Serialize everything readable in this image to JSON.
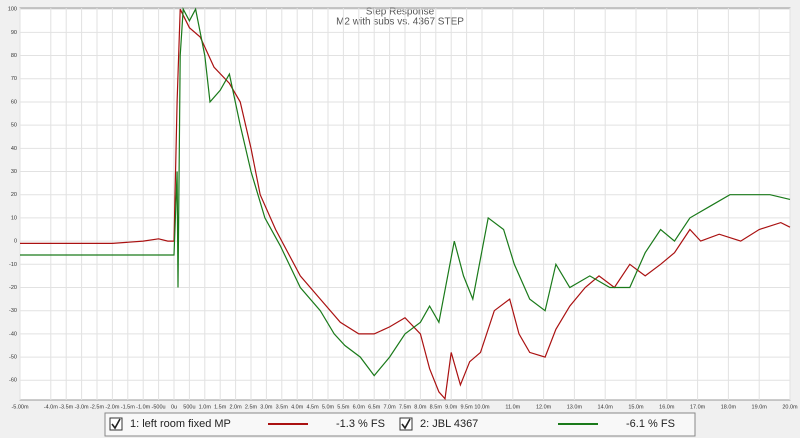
{
  "chart_data": {
    "type": "line",
    "title": "Step Response",
    "subtitle": "M2 with subs vs. 4367 STEP",
    "xlim": [
      -5,
      20
    ],
    "ylim": [
      -68.5,
      100.5
    ],
    "yticks": [
      100,
      90,
      80,
      70,
      60,
      50,
      40,
      30,
      20,
      10,
      0,
      -10,
      -20,
      -30,
      -40,
      -50,
      -60
    ],
    "xticks": [
      {
        "value": -5,
        "label": "-5.00m"
      },
      {
        "value": -4,
        "label": "-4.0m"
      },
      {
        "value": -3.5,
        "label": "-3.5m"
      },
      {
        "value": -3,
        "label": "-3.0m"
      },
      {
        "value": -2.5,
        "label": "-2.5m"
      },
      {
        "value": -2,
        "label": "-2.0m"
      },
      {
        "value": -1.5,
        "label": "-1.5m"
      },
      {
        "value": -1,
        "label": "-1.0m"
      },
      {
        "value": -0.5,
        "label": "-500u"
      },
      {
        "value": 0,
        "label": "0u"
      },
      {
        "value": 0.5,
        "label": "500u"
      },
      {
        "value": 1,
        "label": "1.0m"
      },
      {
        "value": 1.5,
        "label": "1.5m"
      },
      {
        "value": 2,
        "label": "2.0m"
      },
      {
        "value": 2.5,
        "label": "2.5m"
      },
      {
        "value": 3,
        "label": "3.0m"
      },
      {
        "value": 3.5,
        "label": "3.5m"
      },
      {
        "value": 4,
        "label": "4.0m"
      },
      {
        "value": 4.5,
        "label": "4.5m"
      },
      {
        "value": 5,
        "label": "5.0m"
      },
      {
        "value": 5.5,
        "label": "5.5m"
      },
      {
        "value": 6,
        "label": "6.0m"
      },
      {
        "value": 6.5,
        "label": "6.5m"
      },
      {
        "value": 7,
        "label": "7.0m"
      },
      {
        "value": 7.5,
        "label": "7.5m"
      },
      {
        "value": 8,
        "label": "8.0m"
      },
      {
        "value": 8.5,
        "label": "8.5m"
      },
      {
        "value": 9,
        "label": "9.0m"
      },
      {
        "value": 9.5,
        "label": "9.5m"
      },
      {
        "value": 10,
        "label": "10.0m"
      },
      {
        "value": 11,
        "label": "11.0m"
      },
      {
        "value": 12,
        "label": "12.0m"
      },
      {
        "value": 13,
        "label": "13.0m"
      },
      {
        "value": 14,
        "label": "14.0m"
      },
      {
        "value": 15,
        "label": "15.0m"
      },
      {
        "value": 16,
        "label": "16.0m"
      },
      {
        "value": 17,
        "label": "17.0m"
      },
      {
        "value": 18,
        "label": "18.0m"
      },
      {
        "value": 19,
        "label": "19.0m"
      },
      {
        "value": 20,
        "label": "20.0m"
      }
    ],
    "grid": true,
    "series": [
      {
        "name": "1: left room fixed MP",
        "level": "-1.3 % FS",
        "color": "#aa1111",
        "x": [
          -5,
          -2,
          -1,
          -0.5,
          -0.2,
          0,
          0.1,
          0.2,
          0.5,
          0.85,
          1.3,
          1.8,
          2.15,
          2.5,
          2.8,
          3.3,
          4.1,
          4.75,
          5.4,
          6.0,
          6.5,
          7.0,
          7.5,
          8.0,
          8.3,
          8.6,
          8.8,
          9.0,
          9.3,
          9.6,
          9.95,
          10.4,
          10.9,
          11.2,
          11.55,
          12.05,
          12.4,
          12.85,
          13.35,
          13.8,
          14.3,
          14.8,
          15.3,
          15.8,
          16.25,
          16.75,
          17.1,
          17.7,
          18.4,
          19.0,
          19.7,
          20
        ],
        "values": [
          -1,
          -1,
          0,
          1,
          0,
          0,
          60,
          100,
          92,
          88,
          75,
          68,
          60,
          40,
          20,
          5,
          -15,
          -25,
          -35,
          -40,
          -40,
          -37,
          -33,
          -40,
          -55,
          -65,
          -68,
          -48,
          -62,
          -52,
          -48,
          -30,
          -25,
          -40,
          -48,
          -50,
          -38,
          -28,
          -20,
          -15,
          -20,
          -10,
          -15,
          -10,
          -5,
          5,
          0,
          3,
          0,
          5,
          8,
          6
        ]
      },
      {
        "name": "2: JBL 4367",
        "level": "-6.1 % FS",
        "color": "#1a7a1a",
        "x": [
          -5,
          -0.3,
          0,
          0.1,
          0.13,
          0.2,
          0.3,
          0.5,
          0.7,
          0.85,
          1.0,
          1.17,
          1.5,
          1.8,
          2.15,
          2.5,
          2.95,
          3.45,
          4.1,
          4.75,
          5.2,
          5.55,
          6.05,
          6.5,
          7.0,
          7.5,
          8.0,
          8.3,
          8.6,
          9.1,
          9.4,
          9.7,
          10.2,
          10.7,
          11.05,
          11.55,
          12.05,
          12.4,
          12.85,
          13.5,
          14.15,
          14.8,
          15.3,
          15.8,
          16.25,
          16.75,
          17.4,
          18.05,
          18.7,
          19.35,
          20
        ],
        "values": [
          -6,
          -6,
          -6,
          30,
          -20,
          80,
          100,
          95,
          100,
          90,
          80,
          60,
          65,
          72,
          50,
          30,
          10,
          -2,
          -20,
          -30,
          -40,
          -45,
          -50,
          -58,
          -50,
          -40,
          -35,
          -28,
          -35,
          0,
          -15,
          -25,
          10,
          5,
          -10,
          -25,
          -30,
          -10,
          -20,
          -15,
          -20,
          -20,
          -5,
          5,
          0,
          10,
          15,
          20,
          20,
          20,
          18
        ]
      }
    ]
  }
}
